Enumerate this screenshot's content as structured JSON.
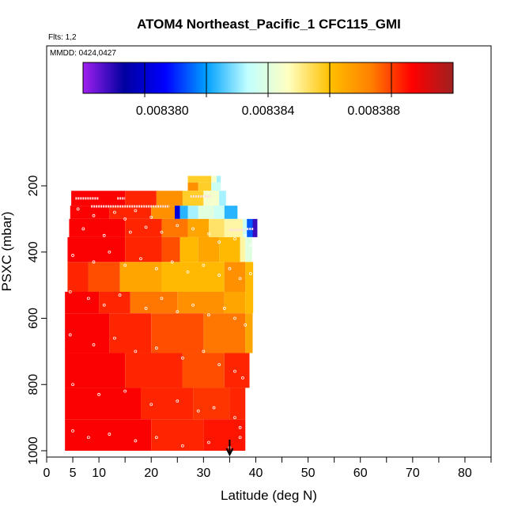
{
  "chart_data": {
    "type": "heatmap",
    "title": "ATOM4 Northeast_Pacific_1 CFC115_GMI",
    "flights_note": "Flts: 1,2",
    "date_note": "MMDD: 0424,0427",
    "xlabel": "Latitude (deg N)",
    "ylabel": "PSXC (mbar)",
    "xlim": [
      0,
      85
    ],
    "ylim": [
      1000,
      100
    ],
    "x_ticks": [
      0,
      5,
      10,
      20,
      30,
      40,
      50,
      60,
      70,
      80
    ],
    "x_tick_labels": [
      "0",
      "5",
      "10",
      "20",
      "30",
      "40",
      "50",
      "60",
      "70",
      "80"
    ],
    "y_ticks": [
      200,
      400,
      600,
      800,
      1000
    ],
    "y_tick_labels": [
      "200",
      "400",
      "600",
      "800",
      "1000"
    ],
    "colorbar": {
      "range": [
        0.008377,
        0.008391
      ],
      "tick_values": [
        0.00838,
        0.008384,
        0.008388
      ],
      "tick_labels": [
        "0.008380",
        "0.008384",
        "0.008388"
      ],
      "colors": [
        "#a020f0",
        "#0000a0",
        "#0000ff",
        "#00a0ff",
        "#c0ffff",
        "#ffffc0",
        "#ffc000",
        "#ff8000",
        "#ff0000",
        "#a02020"
      ]
    },
    "arrow_latitude": 35,
    "rows": [
      {
        "p": [
          170,
          190
        ],
        "cells": [
          [
            27.0,
            31.5,
            0.008386
          ],
          [
            31.5,
            32.5,
            0.0083845
          ],
          [
            32.5,
            33.3,
            0.008383
          ]
        ]
      },
      {
        "p": [
          190,
          215
        ],
        "cells": [
          [
            27.0,
            29.0,
            0.0083875
          ],
          [
            29.0,
            31.5,
            0.008386
          ],
          [
            31.5,
            33.3,
            0.0083835
          ]
        ]
      },
      {
        "p": [
          215,
          260
        ],
        "cells": [
          [
            4.7,
            15.0,
            0.0083895
          ],
          [
            15.0,
            21.0,
            0.008389
          ],
          [
            21.0,
            26.0,
            0.0083875
          ],
          [
            26.0,
            30.0,
            0.008386
          ],
          [
            30.0,
            33.0,
            0.0083845
          ],
          [
            33.0,
            34.3,
            0.008383
          ]
        ]
      },
      {
        "p": [
          260,
          300
        ],
        "cells": [
          [
            4.5,
            12.0,
            0.0083895
          ],
          [
            12.0,
            20.0,
            0.008389
          ],
          [
            20.0,
            24.5,
            0.0083875
          ],
          [
            24.5,
            25.5,
            0.0083795
          ],
          [
            25.5,
            27.0,
            0.008382
          ],
          [
            27.0,
            29.0,
            0.008383
          ],
          [
            29.0,
            32.0,
            0.008384
          ],
          [
            32.0,
            34.0,
            0.0083835
          ],
          [
            34.0,
            36.5,
            0.008382
          ]
        ]
      },
      {
        "p": [
          300,
          355
        ],
        "cells": [
          [
            4.3,
            15.0,
            0.0083895
          ],
          [
            15.0,
            22.0,
            0.008389
          ],
          [
            22.0,
            27.0,
            0.008388
          ],
          [
            27.0,
            31.0,
            0.008387
          ],
          [
            31.0,
            34.0,
            0.0083855
          ],
          [
            34.0,
            37.5,
            0.008385
          ],
          [
            37.5,
            38.3,
            0.0083835
          ],
          [
            38.3,
            39.4,
            0.008381
          ],
          [
            39.4,
            40.3,
            0.008378
          ]
        ]
      },
      {
        "p": [
          355,
          430
        ],
        "cells": [
          [
            4.0,
            15.0,
            0.0083895
          ],
          [
            15.0,
            22.0,
            0.008389
          ],
          [
            22.0,
            25.5,
            0.0083885
          ],
          [
            25.5,
            29.0,
            0.0083865
          ],
          [
            29.0,
            33.0,
            0.008387
          ],
          [
            33.0,
            37.0,
            0.0083865
          ],
          [
            37.0,
            38.0,
            0.008385
          ],
          [
            38.0,
            39.3,
            0.008384
          ]
        ]
      },
      {
        "p": [
          430,
          520
        ],
        "cells": [
          [
            4.0,
            8.0,
            0.008389
          ],
          [
            8.0,
            14.0,
            0.0083885
          ],
          [
            14.0,
            22.0,
            0.008387
          ],
          [
            22.0,
            27.0,
            0.0083865
          ],
          [
            27.0,
            34.0,
            0.0083865
          ],
          [
            34.0,
            38.0,
            0.0083875
          ],
          [
            38.0,
            39.5,
            0.0083865
          ]
        ]
      },
      {
        "p": [
          520,
          585
        ],
        "cells": [
          [
            3.5,
            10.0,
            0.0083895
          ],
          [
            10.0,
            16.0,
            0.008389
          ],
          [
            16.0,
            25.0,
            0.008388
          ],
          [
            25.0,
            34.0,
            0.0083875
          ],
          [
            34.0,
            38.0,
            0.008387
          ],
          [
            38.0,
            39.5,
            0.0083865
          ]
        ]
      },
      {
        "p": [
          585,
          705
        ],
        "cells": [
          [
            3.5,
            12.0,
            0.0083895
          ],
          [
            12.0,
            20.0,
            0.008389
          ],
          [
            20.0,
            30.0,
            0.0083885
          ],
          [
            30.0,
            38.0,
            0.008388
          ],
          [
            38.0,
            39.4,
            0.008387
          ]
        ]
      },
      {
        "p": [
          705,
          810
        ],
        "cells": [
          [
            3.5,
            15.0,
            0.0083895
          ],
          [
            15.0,
            26.0,
            0.008389
          ],
          [
            26.0,
            34.0,
            0.0083885
          ],
          [
            34.0,
            38.8,
            0.008389
          ]
        ]
      },
      {
        "p": [
          810,
          905
        ],
        "cells": [
          [
            3.5,
            18.0,
            0.0083895
          ],
          [
            18.0,
            28.0,
            0.008389
          ],
          [
            28.0,
            35.0,
            0.0083888
          ],
          [
            35.0,
            38.0,
            0.008389
          ]
        ]
      },
      {
        "p": [
          905,
          1000
        ],
        "cells": [
          [
            3.5,
            20.0,
            0.0083895
          ],
          [
            20.0,
            30.0,
            0.008389
          ],
          [
            30.0,
            38.0,
            0.0083892
          ]
        ]
      }
    ],
    "flight_tracks": [
      {
        "p": 238,
        "lon": [
          5.5,
          10.0
        ]
      },
      {
        "p": 238,
        "lon": [
          13.5,
          15.0
        ]
      },
      {
        "p": 262,
        "lon": [
          8.5,
          23.5
        ]
      },
      {
        "p": 232,
        "lon": [
          27.5,
          31.5
        ]
      },
      {
        "p": 333,
        "lon": [
          35.0,
          38.0
        ]
      },
      {
        "p": 330,
        "lon": [
          38.3,
          39.6
        ]
      }
    ],
    "sample_points": [
      [
        6,
        270
      ],
      [
        9,
        290
      ],
      [
        13,
        280
      ],
      [
        15,
        300
      ],
      [
        17,
        275
      ],
      [
        20,
        295
      ],
      [
        7,
        330
      ],
      [
        11,
        350
      ],
      [
        16,
        340
      ],
      [
        19,
        325
      ],
      [
        22,
        340
      ],
      [
        25,
        320
      ],
      [
        28,
        330
      ],
      [
        31,
        345
      ],
      [
        33,
        370
      ],
      [
        36,
        360
      ],
      [
        38,
        350
      ],
      [
        39,
        380
      ],
      [
        5,
        410
      ],
      [
        9,
        430
      ],
      [
        12,
        400
      ],
      [
        15,
        440
      ],
      [
        18,
        420
      ],
      [
        21,
        450
      ],
      [
        24,
        430
      ],
      [
        27,
        460
      ],
      [
        30,
        440
      ],
      [
        33,
        470
      ],
      [
        35,
        450
      ],
      [
        37,
        480
      ],
      [
        39,
        465
      ],
      [
        4.5,
        520
      ],
      [
        8,
        540
      ],
      [
        11,
        560
      ],
      [
        14,
        530
      ],
      [
        19,
        570
      ],
      [
        22,
        540
      ],
      [
        25,
        580
      ],
      [
        28,
        560
      ],
      [
        31,
        590
      ],
      [
        34,
        570
      ],
      [
        36,
        600
      ],
      [
        38,
        620
      ],
      [
        4.5,
        650
      ],
      [
        9,
        680
      ],
      [
        13,
        660
      ],
      [
        17,
        700
      ],
      [
        21,
        690
      ],
      [
        26,
        720
      ],
      [
        30,
        700
      ],
      [
        33,
        740
      ],
      [
        36,
        760
      ],
      [
        37.5,
        780
      ],
      [
        5,
        800
      ],
      [
        10,
        830
      ],
      [
        15,
        820
      ],
      [
        20,
        860
      ],
      [
        25,
        850
      ],
      [
        29,
        880
      ],
      [
        32,
        870
      ],
      [
        36,
        900
      ],
      [
        37,
        930
      ],
      [
        5,
        940
      ],
      [
        8,
        960
      ],
      [
        12,
        950
      ],
      [
        17,
        970
      ],
      [
        21,
        960
      ],
      [
        26,
        985
      ],
      [
        31,
        975
      ],
      [
        35,
        990
      ],
      [
        37,
        960
      ]
    ]
  }
}
